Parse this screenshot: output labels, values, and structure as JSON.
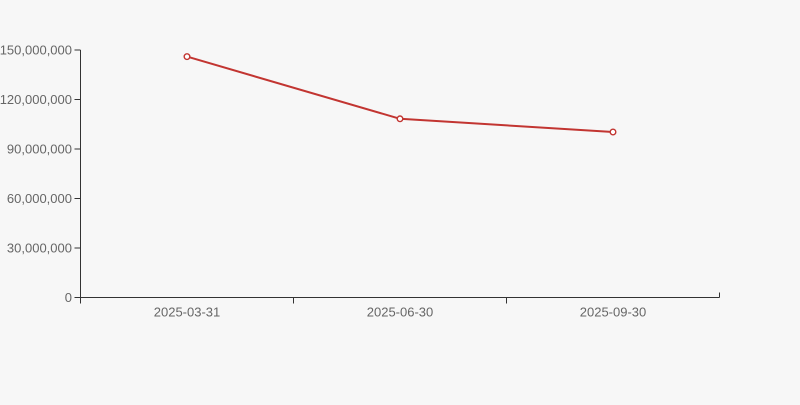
{
  "page": {
    "background": "#f7f7f7"
  },
  "chart_data": {
    "type": "line",
    "title": "",
    "categories": [
      "2025-03-31",
      "2025-06-30",
      "2025-09-30"
    ],
    "values": [
      146000000,
      108300000,
      100300000
    ],
    "y_ticks": [
      0,
      30000000,
      60000000,
      90000000,
      120000000,
      150000000
    ],
    "ylim": [
      0,
      150000000
    ],
    "xlabel": "",
    "ylabel": "",
    "grid": false,
    "legend": "none",
    "line_color": "#c23531",
    "marker": "hollow-circle",
    "marker_fill": "#ffffff",
    "axis_color": "#333333",
    "tick_label_color": "#666666",
    "tick_label_font_px": 13
  }
}
